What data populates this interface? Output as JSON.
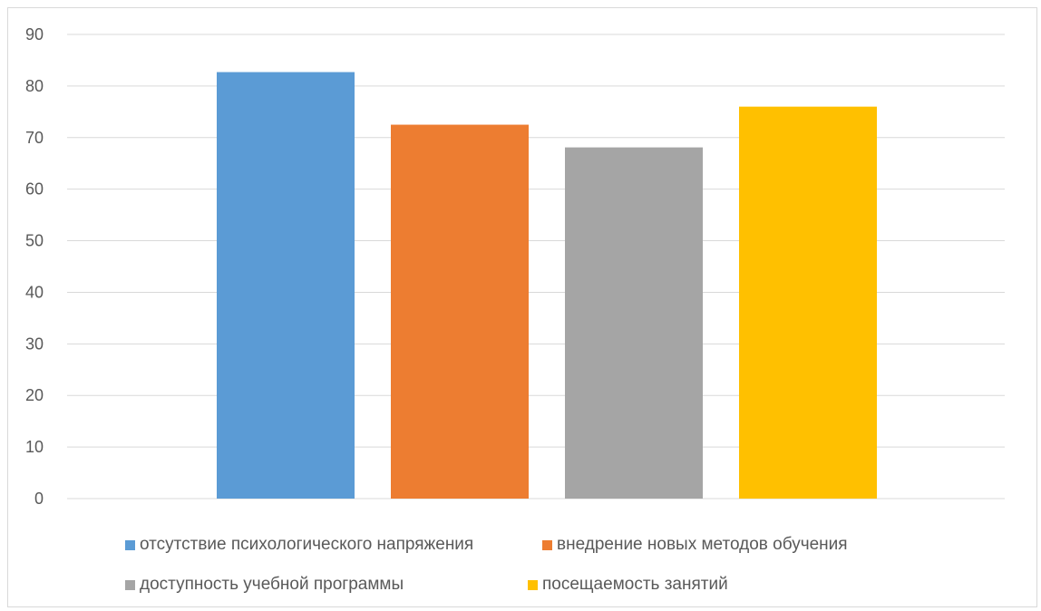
{
  "chart_data": {
    "type": "bar",
    "title": "",
    "xlabel": "",
    "ylabel": "",
    "ylim": [
      0,
      90
    ],
    "yticks": [
      0,
      10,
      20,
      30,
      40,
      50,
      60,
      70,
      80,
      90
    ],
    "grid": true,
    "legend_position": "bottom",
    "series": [
      {
        "name": "отсутствие психологического напряжения",
        "value": 82.7,
        "color": "#5b9bd5"
      },
      {
        "name": "внедрение новых методов обучения",
        "value": 72.5,
        "color": "#ed7d31"
      },
      {
        "name": "доступность учебной программы",
        "value": 68.1,
        "color": "#a5a5a5"
      },
      {
        "name": "посещаемость занятий",
        "value": 76,
        "color": "#ffc000"
      }
    ]
  }
}
